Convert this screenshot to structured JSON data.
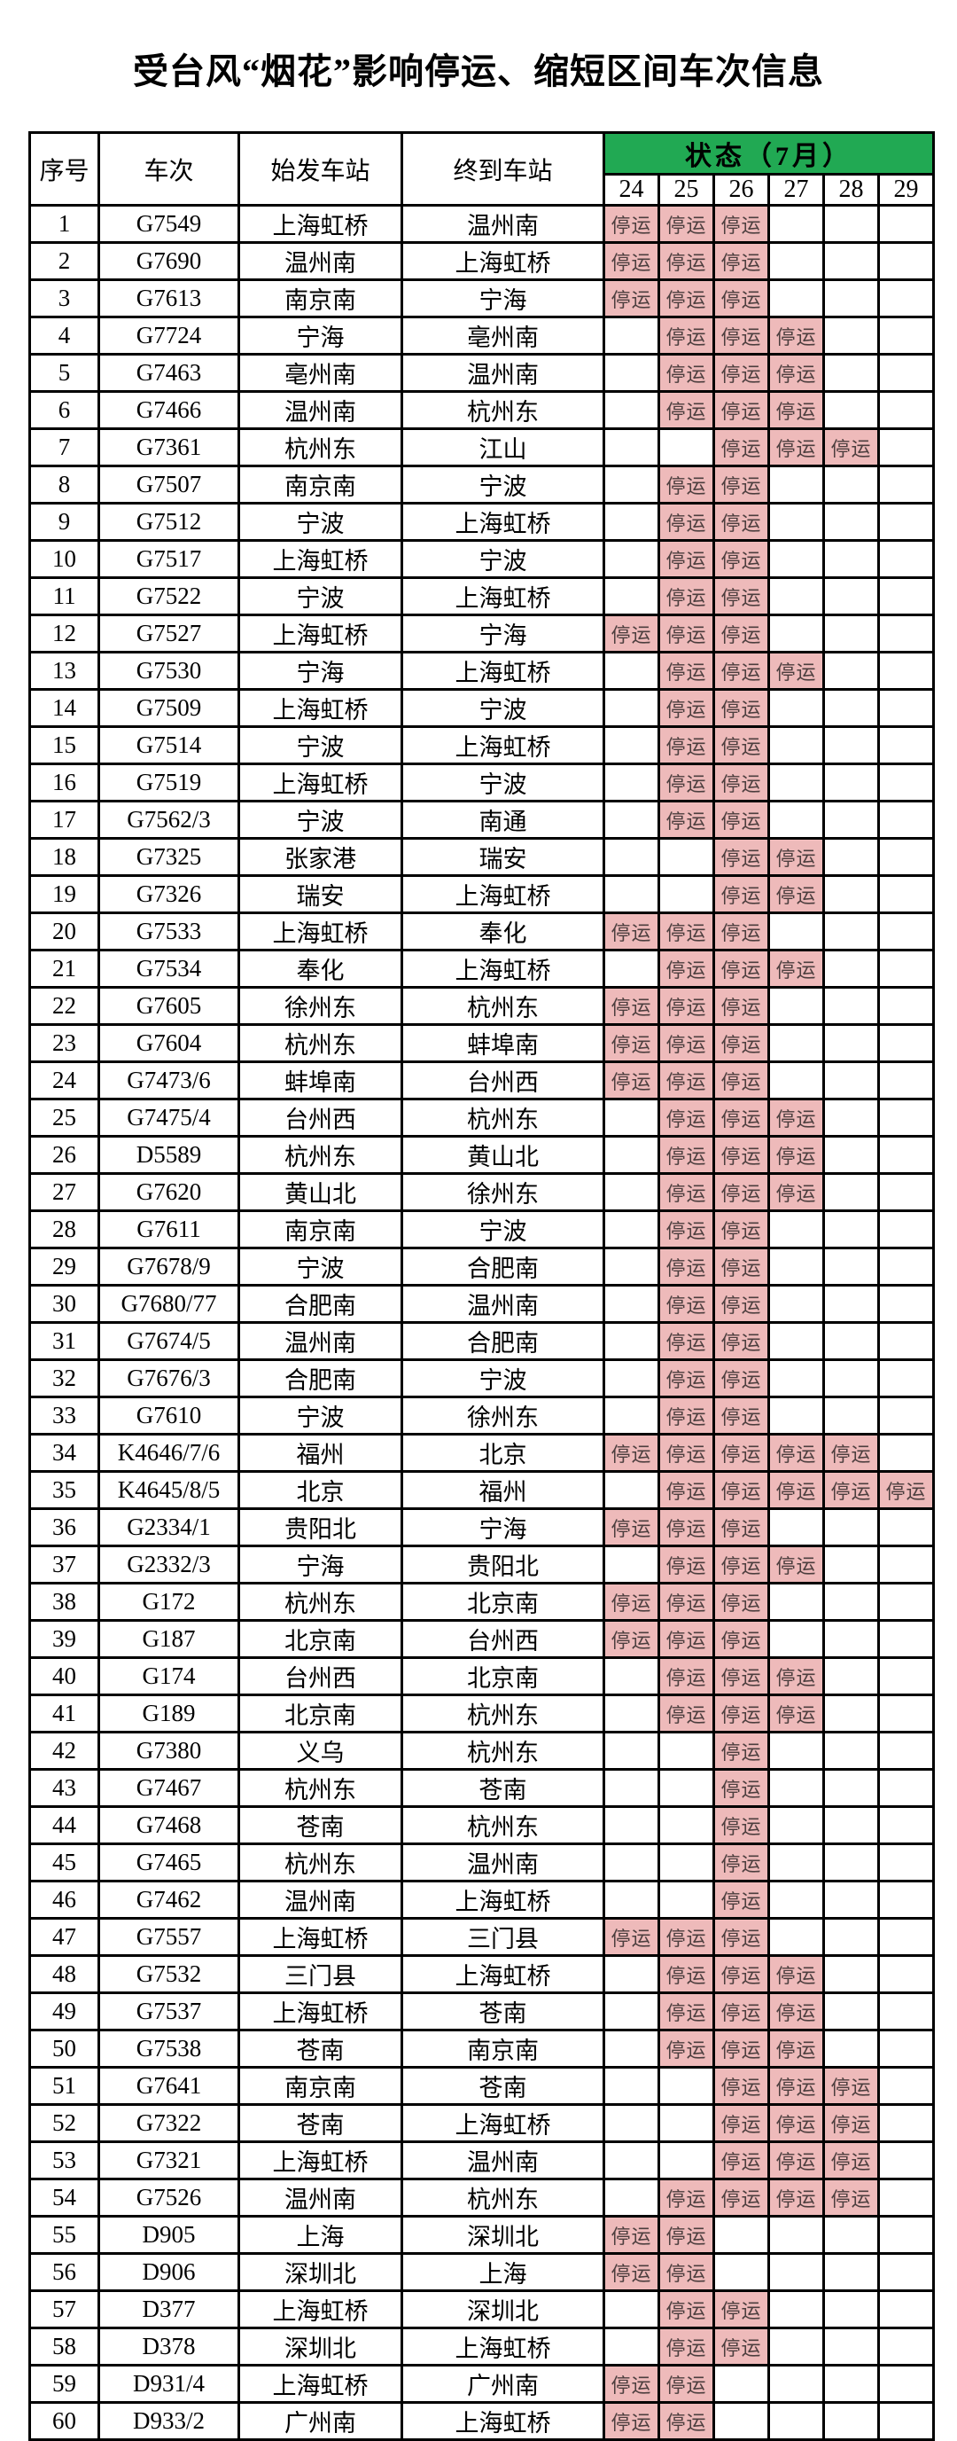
{
  "title": "受台风“烟花”影响停运、缩短区间车次信息",
  "colors": {
    "header_green": "#21a953",
    "suspended_bg": "#eebaba",
    "suspended_text": "#4c3e3e",
    "border": "#000000",
    "page_background": "#ffffff"
  },
  "table": {
    "headers": {
      "seq": "序号",
      "train": "车次",
      "origin": "始发车站",
      "destination": "终到车站",
      "status": "状态（7月）"
    },
    "dates": [
      24,
      25,
      26,
      27,
      28,
      29
    ],
    "suspended_label": "停运",
    "rows": [
      {
        "no": 1,
        "train": "G7549",
        "from": "上海虹桥",
        "to": "温州南",
        "suspended": [
          24,
          25,
          26
        ]
      },
      {
        "no": 2,
        "train": "G7690",
        "from": "温州南",
        "to": "上海虹桥",
        "suspended": [
          24,
          25,
          26
        ]
      },
      {
        "no": 3,
        "train": "G7613",
        "from": "南京南",
        "to": "宁海",
        "suspended": [
          24,
          25,
          26
        ]
      },
      {
        "no": 4,
        "train": "G7724",
        "from": "宁海",
        "to": "亳州南",
        "suspended": [
          25,
          26,
          27
        ]
      },
      {
        "no": 5,
        "train": "G7463",
        "from": "亳州南",
        "to": "温州南",
        "suspended": [
          25,
          26,
          27
        ]
      },
      {
        "no": 6,
        "train": "G7466",
        "from": "温州南",
        "to": "杭州东",
        "suspended": [
          25,
          26,
          27
        ]
      },
      {
        "no": 7,
        "train": "G7361",
        "from": "杭州东",
        "to": "江山",
        "suspended": [
          26,
          27,
          28
        ]
      },
      {
        "no": 8,
        "train": "G7507",
        "from": "南京南",
        "to": "宁波",
        "suspended": [
          25,
          26
        ]
      },
      {
        "no": 9,
        "train": "G7512",
        "from": "宁波",
        "to": "上海虹桥",
        "suspended": [
          25,
          26
        ]
      },
      {
        "no": 10,
        "train": "G7517",
        "from": "上海虹桥",
        "to": "宁波",
        "suspended": [
          25,
          26
        ]
      },
      {
        "no": 11,
        "train": "G7522",
        "from": "宁波",
        "to": "上海虹桥",
        "suspended": [
          25,
          26
        ]
      },
      {
        "no": 12,
        "train": "G7527",
        "from": "上海虹桥",
        "to": "宁海",
        "suspended": [
          24,
          25,
          26
        ]
      },
      {
        "no": 13,
        "train": "G7530",
        "from": "宁海",
        "to": "上海虹桥",
        "suspended": [
          25,
          26,
          27
        ]
      },
      {
        "no": 14,
        "train": "G7509",
        "from": "上海虹桥",
        "to": "宁波",
        "suspended": [
          25,
          26
        ]
      },
      {
        "no": 15,
        "train": "G7514",
        "from": "宁波",
        "to": "上海虹桥",
        "suspended": [
          25,
          26
        ]
      },
      {
        "no": 16,
        "train": "G7519",
        "from": "上海虹桥",
        "to": "宁波",
        "suspended": [
          25,
          26
        ]
      },
      {
        "no": 17,
        "train": "G7562/3",
        "from": "宁波",
        "to": "南通",
        "suspended": [
          25,
          26
        ]
      },
      {
        "no": 18,
        "train": "G7325",
        "from": "张家港",
        "to": "瑞安",
        "suspended": [
          26,
          27
        ]
      },
      {
        "no": 19,
        "train": "G7326",
        "from": "瑞安",
        "to": "上海虹桥",
        "suspended": [
          26,
          27
        ]
      },
      {
        "no": 20,
        "train": "G7533",
        "from": "上海虹桥",
        "to": "奉化",
        "suspended": [
          24,
          25,
          26
        ]
      },
      {
        "no": 21,
        "train": "G7534",
        "from": "奉化",
        "to": "上海虹桥",
        "suspended": [
          25,
          26,
          27
        ]
      },
      {
        "no": 22,
        "train": "G7605",
        "from": "徐州东",
        "to": "杭州东",
        "suspended": [
          24,
          25,
          26
        ]
      },
      {
        "no": 23,
        "train": "G7604",
        "from": "杭州东",
        "to": "蚌埠南",
        "suspended": [
          24,
          25,
          26
        ]
      },
      {
        "no": 24,
        "train": "G7473/6",
        "from": "蚌埠南",
        "to": "台州西",
        "suspended": [
          24,
          25,
          26
        ]
      },
      {
        "no": 25,
        "train": "G7475/4",
        "from": "台州西",
        "to": "杭州东",
        "suspended": [
          25,
          26,
          27
        ]
      },
      {
        "no": 26,
        "train": "D5589",
        "from": "杭州东",
        "to": "黄山北",
        "suspended": [
          25,
          26,
          27
        ]
      },
      {
        "no": 27,
        "train": "G7620",
        "from": "黄山北",
        "to": "徐州东",
        "suspended": [
          25,
          26,
          27
        ]
      },
      {
        "no": 28,
        "train": "G7611",
        "from": "南京南",
        "to": "宁波",
        "suspended": [
          25,
          26
        ]
      },
      {
        "no": 29,
        "train": "G7678/9",
        "from": "宁波",
        "to": "合肥南",
        "suspended": [
          25,
          26
        ]
      },
      {
        "no": 30,
        "train": "G7680/77",
        "from": "合肥南",
        "to": "温州南",
        "suspended": [
          25,
          26
        ]
      },
      {
        "no": 31,
        "train": "G7674/5",
        "from": "温州南",
        "to": "合肥南",
        "suspended": [
          25,
          26
        ]
      },
      {
        "no": 32,
        "train": "G7676/3",
        "from": "合肥南",
        "to": "宁波",
        "suspended": [
          25,
          26
        ]
      },
      {
        "no": 33,
        "train": "G7610",
        "from": "宁波",
        "to": "徐州东",
        "suspended": [
          25,
          26
        ]
      },
      {
        "no": 34,
        "train": "K4646/7/6",
        "from": "福州",
        "to": "北京",
        "suspended": [
          24,
          25,
          26,
          27,
          28
        ]
      },
      {
        "no": 35,
        "train": "K4645/8/5",
        "from": "北京",
        "to": "福州",
        "suspended": [
          25,
          26,
          27,
          28,
          29
        ]
      },
      {
        "no": 36,
        "train": "G2334/1",
        "from": "贵阳北",
        "to": "宁海",
        "suspended": [
          24,
          25,
          26
        ]
      },
      {
        "no": 37,
        "train": "G2332/3",
        "from": "宁海",
        "to": "贵阳北",
        "suspended": [
          25,
          26,
          27
        ]
      },
      {
        "no": 38,
        "train": "G172",
        "from": "杭州东",
        "to": "北京南",
        "suspended": [
          24,
          25,
          26
        ]
      },
      {
        "no": 39,
        "train": "G187",
        "from": "北京南",
        "to": "台州西",
        "suspended": [
          24,
          25,
          26
        ]
      },
      {
        "no": 40,
        "train": "G174",
        "from": "台州西",
        "to": "北京南",
        "suspended": [
          25,
          26,
          27
        ]
      },
      {
        "no": 41,
        "train": "G189",
        "from": "北京南",
        "to": "杭州东",
        "suspended": [
          25,
          26,
          27
        ]
      },
      {
        "no": 42,
        "train": "G7380",
        "from": "义乌",
        "to": "杭州东",
        "suspended": [
          26
        ]
      },
      {
        "no": 43,
        "train": "G7467",
        "from": "杭州东",
        "to": "苍南",
        "suspended": [
          26
        ]
      },
      {
        "no": 44,
        "train": "G7468",
        "from": "苍南",
        "to": "杭州东",
        "suspended": [
          26
        ]
      },
      {
        "no": 45,
        "train": "G7465",
        "from": "杭州东",
        "to": "温州南",
        "suspended": [
          26
        ]
      },
      {
        "no": 46,
        "train": "G7462",
        "from": "温州南",
        "to": "上海虹桥",
        "suspended": [
          26
        ]
      },
      {
        "no": 47,
        "train": "G7557",
        "from": "上海虹桥",
        "to": "三门县",
        "suspended": [
          24,
          25,
          26
        ]
      },
      {
        "no": 48,
        "train": "G7532",
        "from": "三门县",
        "to": "上海虹桥",
        "suspended": [
          25,
          26,
          27
        ]
      },
      {
        "no": 49,
        "train": "G7537",
        "from": "上海虹桥",
        "to": "苍南",
        "suspended": [
          25,
          26,
          27
        ]
      },
      {
        "no": 50,
        "train": "G7538",
        "from": "苍南",
        "to": "南京南",
        "suspended": [
          25,
          26,
          27
        ]
      },
      {
        "no": 51,
        "train": "G7641",
        "from": "南京南",
        "to": "苍南",
        "suspended": [
          26,
          27,
          28
        ]
      },
      {
        "no": 52,
        "train": "G7322",
        "from": "苍南",
        "to": "上海虹桥",
        "suspended": [
          26,
          27,
          28
        ]
      },
      {
        "no": 53,
        "train": "G7321",
        "from": "上海虹桥",
        "to": "温州南",
        "suspended": [
          26,
          27,
          28
        ]
      },
      {
        "no": 54,
        "train": "G7526",
        "from": "温州南",
        "to": "杭州东",
        "suspended": [
          25,
          26,
          27,
          28
        ]
      },
      {
        "no": 55,
        "train": "D905",
        "from": "上海",
        "to": "深圳北",
        "suspended": [
          24,
          25
        ]
      },
      {
        "no": 56,
        "train": "D906",
        "from": "深圳北",
        "to": "上海",
        "suspended": [
          24,
          25
        ]
      },
      {
        "no": 57,
        "train": "D377",
        "from": "上海虹桥",
        "to": "深圳北",
        "suspended": [
          25,
          26
        ]
      },
      {
        "no": 58,
        "train": "D378",
        "from": "深圳北",
        "to": "上海虹桥",
        "suspended": [
          25,
          26
        ]
      },
      {
        "no": 59,
        "train": "D931/4",
        "from": "上海虹桥",
        "to": "广州南",
        "suspended": [
          24,
          25
        ]
      },
      {
        "no": 60,
        "train": "D933/2",
        "from": "广州南",
        "to": "上海虹桥",
        "suspended": [
          24,
          25
        ]
      }
    ]
  }
}
